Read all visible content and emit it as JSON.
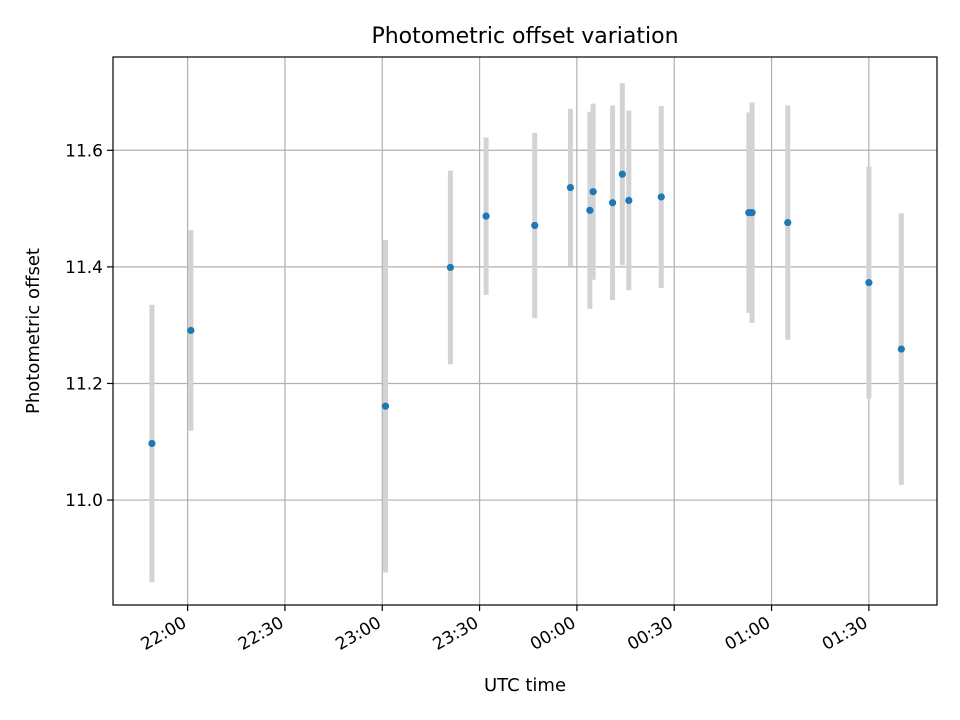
{
  "chart_data": {
    "type": "scatter",
    "title": "Photometric offset variation",
    "xlabel": "UTC time",
    "ylabel": "Photometric offset",
    "x_type": "time",
    "x_ticks": [
      "22:00",
      "22:30",
      "23:00",
      "23:30",
      "00:00",
      "00:30",
      "01:00",
      "01:30"
    ],
    "y_ticks": [
      "11.0",
      "11.2",
      "11.4",
      "11.6"
    ],
    "ylim": [
      10.82,
      11.76
    ],
    "grid": true,
    "marker_color": "#1f77b4",
    "errorbar_color": "#d3d3d3",
    "series": [
      {
        "points": [
          {
            "time": "21:49",
            "y": 11.097,
            "err": 0.238
          },
          {
            "time": "22:01",
            "y": 11.291,
            "err": 0.172
          },
          {
            "time": "23:01",
            "y": 11.161,
            "err": 0.285
          },
          {
            "time": "23:21",
            "y": 11.399,
            "err": 0.166
          },
          {
            "time": "23:32",
            "y": 11.487,
            "err": 0.135
          },
          {
            "time": "23:47",
            "y": 11.471,
            "err": 0.159
          },
          {
            "time": "23:58",
            "y": 11.536,
            "err": 0.135
          },
          {
            "time": "00:04",
            "y": 11.497,
            "err": 0.169
          },
          {
            "time": "00:05",
            "y": 11.529,
            "err": 0.151
          },
          {
            "time": "00:11",
            "y": 11.51,
            "err": 0.167
          },
          {
            "time": "00:14",
            "y": 11.559,
            "err": 0.156
          },
          {
            "time": "00:16",
            "y": 11.514,
            "err": 0.154
          },
          {
            "time": "00:26",
            "y": 11.52,
            "err": 0.156
          },
          {
            "time": "00:53",
            "y": 11.493,
            "err": 0.172
          },
          {
            "time": "00:54",
            "y": 11.493,
            "err": 0.189
          },
          {
            "time": "01:05",
            "y": 11.476,
            "err": 0.201
          },
          {
            "time": "01:30",
            "y": 11.373,
            "err": 0.199
          },
          {
            "time": "01:40",
            "y": 11.259,
            "err": 0.233
          }
        ]
      }
    ]
  }
}
